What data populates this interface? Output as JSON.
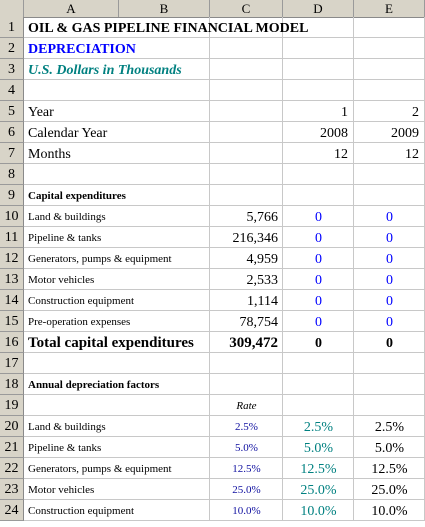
{
  "columns": [
    "A",
    "B",
    "C",
    "D",
    "E"
  ],
  "rows": [
    "1",
    "2",
    "3",
    "4",
    "5",
    "6",
    "7",
    "8",
    "9",
    "10",
    "11",
    "12",
    "13",
    "14",
    "15",
    "16",
    "17",
    "18",
    "19",
    "20",
    "21",
    "22",
    "23",
    "24"
  ],
  "header": {
    "title": "OIL & GAS PIPELINE FINANCIAL MODEL",
    "subtitle": "DEPRECIATION",
    "units": "U.S. Dollars in Thousands"
  },
  "timeline": {
    "year_label": "Year",
    "calendar_year_label": "Calendar Year",
    "months_label": "Months",
    "year": [
      "1",
      "2"
    ],
    "calendar_year": [
      "2008",
      "2009"
    ],
    "months": [
      "12",
      "12"
    ]
  },
  "capex": {
    "title": "Capital expenditures",
    "items": [
      {
        "label": "Land & buildings",
        "c": "5,766",
        "d": "0",
        "e": "0"
      },
      {
        "label": "Pipeline & tanks",
        "c": "216,346",
        "d": "0",
        "e": "0"
      },
      {
        "label": "Generators, pumps & equipment",
        "c": "4,959",
        "d": "0",
        "e": "0"
      },
      {
        "label": "Motor vehicles",
        "c": "2,533",
        "d": "0",
        "e": "0"
      },
      {
        "label": "Construction equipment",
        "c": "1,114",
        "d": "0",
        "e": "0"
      },
      {
        "label": "Pre-operation expenses",
        "c": "78,754",
        "d": "0",
        "e": "0"
      }
    ],
    "total": {
      "label": "Total capital expenditures",
      "c": "309,472",
      "d": "0",
      "e": "0"
    }
  },
  "depreciation": {
    "title": "Annual depreciation factors",
    "rate_label": "Rate",
    "items": [
      {
        "label": "Land & buildings",
        "rate": "2.5%",
        "d": "2.5%",
        "e": "2.5%"
      },
      {
        "label": "Pipeline & tanks",
        "rate": "5.0%",
        "d": "5.0%",
        "e": "5.0%"
      },
      {
        "label": "Generators, pumps & equipment",
        "rate": "12.5%",
        "d": "12.5%",
        "e": "12.5%"
      },
      {
        "label": "Motor vehicles",
        "rate": "25.0%",
        "d": "25.0%",
        "e": "25.0%"
      },
      {
        "label": "Construction equipment",
        "rate": "10.0%",
        "d": "10.0%",
        "e": "10.0%"
      }
    ]
  }
}
